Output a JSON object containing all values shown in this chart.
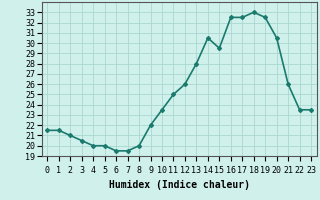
{
  "x": [
    0,
    1,
    2,
    3,
    4,
    5,
    6,
    7,
    8,
    9,
    10,
    11,
    12,
    13,
    14,
    15,
    16,
    17,
    18,
    19,
    20,
    21,
    22,
    23
  ],
  "y": [
    21.5,
    21.5,
    21.0,
    20.5,
    20.0,
    20.0,
    19.5,
    19.5,
    20.0,
    22.0,
    23.5,
    25.0,
    26.0,
    28.0,
    30.5,
    29.5,
    32.5,
    32.5,
    33.0,
    32.5,
    30.5,
    26.0,
    23.5,
    23.5
  ],
  "title": "",
  "xlabel": "Humidex (Indice chaleur)",
  "ylabel": "",
  "line_color": "#1a7a6e",
  "marker": "D",
  "marker_size": 2,
  "bg_color": "#cff0eb",
  "grid_color": "#aad8d0",
  "ylim": [
    19,
    34
  ],
  "xlim": [
    -0.5,
    23.5
  ],
  "yticks": [
    19,
    20,
    21,
    22,
    23,
    24,
    25,
    26,
    27,
    28,
    29,
    30,
    31,
    32,
    33
  ],
  "xtick_labels": [
    "0",
    "1",
    "2",
    "3",
    "4",
    "5",
    "6",
    "7",
    "8",
    "9",
    "10",
    "11",
    "12",
    "13",
    "14",
    "15",
    "16",
    "17",
    "18",
    "19",
    "20",
    "21",
    "22",
    "23"
  ],
  "xlabel_fontsize": 7,
  "tick_fontsize": 6,
  "linewidth": 1.2
}
